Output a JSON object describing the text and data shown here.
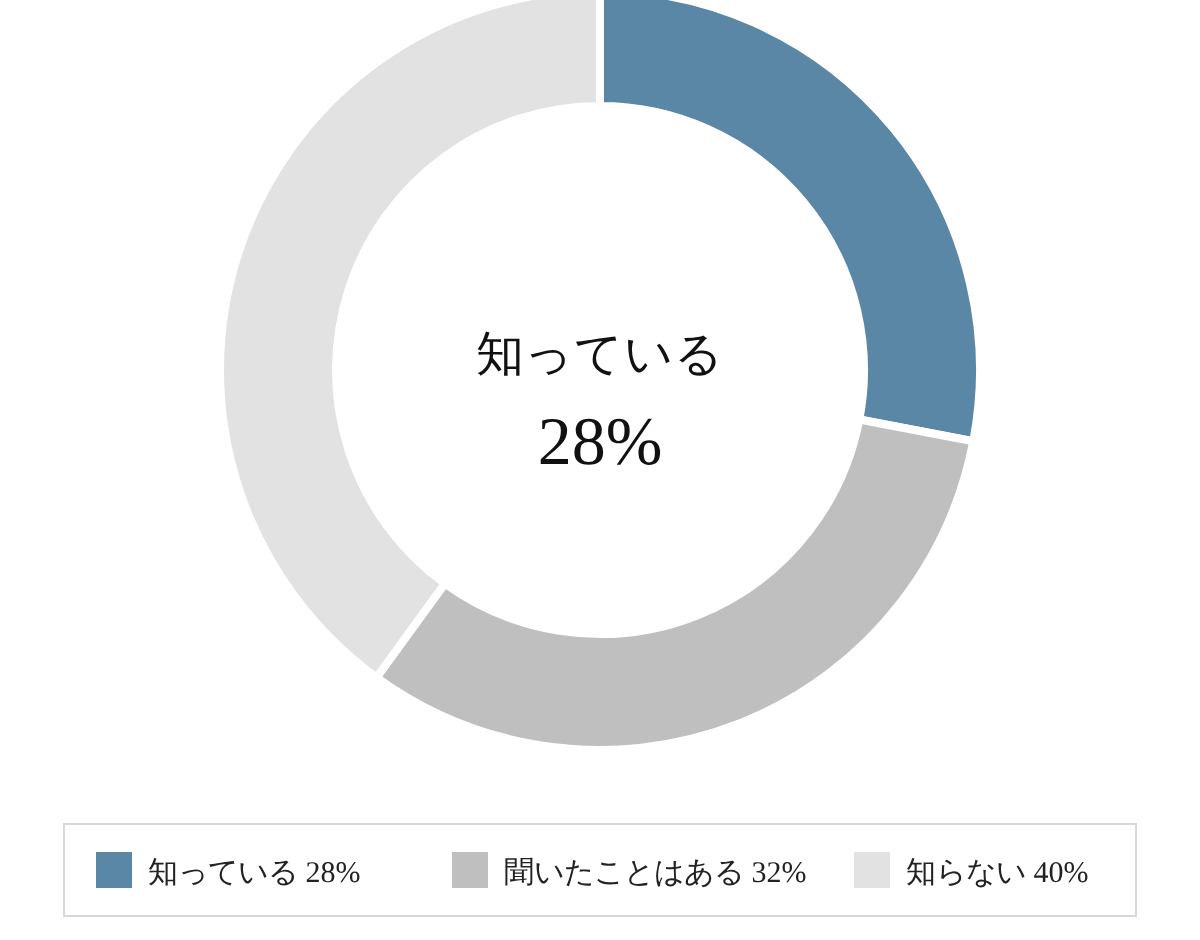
{
  "chart_data": {
    "type": "donut",
    "categories": [
      "知っている",
      "聞いたことはある",
      "知らない"
    ],
    "values": [
      28,
      32,
      40
    ],
    "value_labels": [
      "28%",
      "32%",
      "40%"
    ],
    "colors": [
      "#5a87a5",
      "#bfbfbf",
      "#e2e2e2"
    ],
    "legend": "bottom",
    "annotations": [
      "知っている",
      "28%"
    ]
  }
}
